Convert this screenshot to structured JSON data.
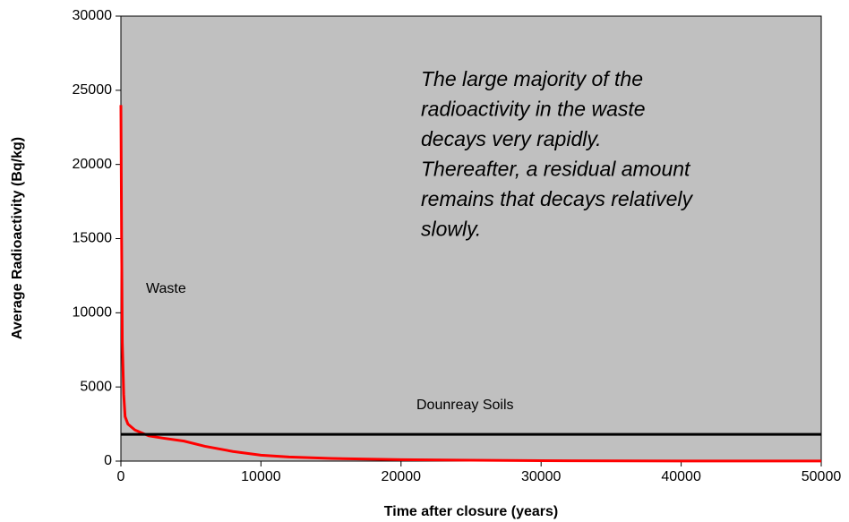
{
  "chart_data": {
    "type": "line",
    "xlabel": "Time after closure (years)",
    "ylabel": "Average Radioactivity (Bq/kg)",
    "annotation_lines": [
      "The large majority of the",
      "radioactivity in the waste",
      "decays very rapidly.",
      "Thereafter, a residual amount",
      "remains that decays relatively",
      "slowly."
    ],
    "series": [
      {
        "name": "Waste",
        "color": "#ff0000",
        "x": [
          0,
          50,
          100,
          200,
          300,
          500,
          1000,
          2000,
          3000,
          4500,
          6000,
          8000,
          10000,
          12000,
          15000,
          20000,
          25000,
          30000,
          40000,
          50000
        ],
        "values": [
          24000,
          15000,
          8000,
          4500,
          3000,
          2500,
          2100,
          1700,
          1550,
          1350,
          1000,
          650,
          400,
          280,
          180,
          100,
          60,
          30,
          10,
          5
        ]
      },
      {
        "name": "Dounreay Soils",
        "color": "#000000",
        "x": [
          0,
          50000
        ],
        "values": [
          1800,
          1800
        ]
      }
    ],
    "xlim": [
      0,
      50000
    ],
    "xticks": [
      0,
      10000,
      20000,
      30000,
      40000,
      50000
    ],
    "ylim": [
      0,
      30000
    ],
    "yticks": [
      0,
      5000,
      10000,
      15000,
      20000,
      25000,
      30000
    ],
    "grid": false,
    "background": "#c0c0c0"
  }
}
